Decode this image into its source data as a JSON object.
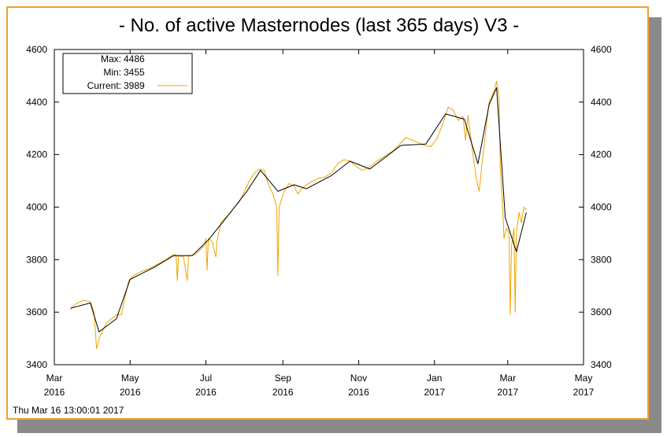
{
  "chart_data": {
    "type": "line",
    "title": "- No. of active Masternodes (last 365 days) V3 -",
    "ylim": [
      3400,
      4600
    ],
    "y_ticks": [
      3400,
      3600,
      3800,
      4000,
      4200,
      4400,
      4600
    ],
    "x_ticks": [
      {
        "month": "Mar",
        "year": "2016",
        "date": "2016-03-01"
      },
      {
        "month": "May",
        "year": "2016",
        "date": "2016-05-01"
      },
      {
        "month": "Jul",
        "year": "2016",
        "date": "2016-07-01"
      },
      {
        "month": "Sep",
        "year": "2016",
        "date": "2016-09-01"
      },
      {
        "month": "Nov",
        "year": "2016",
        "date": "2016-11-01"
      },
      {
        "month": "Jan",
        "year": "2017",
        "date": "2017-01-01"
      },
      {
        "month": "Mar",
        "year": "2017",
        "date": "2017-03-01"
      },
      {
        "month": "May",
        "year": "2017",
        "date": "2017-05-01"
      }
    ],
    "xlim": [
      "2016-03-01",
      "2017-05-01"
    ],
    "grid": false,
    "legend": {
      "placement": "top-left",
      "max_label": "Max:",
      "max_value": "4486",
      "min_label": "Min:",
      "min_value": "3455",
      "current_label": "Current:",
      "current_value": "3989"
    },
    "colors": {
      "raw": "#f0a500",
      "average": "#000000",
      "frame": "#f0a030"
    },
    "series": [
      {
        "style": "raw",
        "points": [
          [
            "2016-03-14",
            3610
          ],
          [
            "2016-03-18",
            3630
          ],
          [
            "2016-03-24",
            3645
          ],
          [
            "2016-03-30",
            3640
          ],
          [
            "2016-04-02",
            3600
          ],
          [
            "2016-04-04",
            3460
          ],
          [
            "2016-04-06",
            3500
          ],
          [
            "2016-04-09",
            3530
          ],
          [
            "2016-04-12",
            3560
          ],
          [
            "2016-04-16",
            3575
          ],
          [
            "2016-04-20",
            3590
          ],
          [
            "2016-04-24",
            3590
          ],
          [
            "2016-04-27",
            3660
          ],
          [
            "2016-04-30",
            3720
          ],
          [
            "2016-05-04",
            3740
          ],
          [
            "2016-05-10",
            3755
          ],
          [
            "2016-05-16",
            3765
          ],
          [
            "2016-05-22",
            3780
          ],
          [
            "2016-05-26",
            3790
          ],
          [
            "2016-05-30",
            3800
          ],
          [
            "2016-06-03",
            3815
          ],
          [
            "2016-06-07",
            3820
          ],
          [
            "2016-06-08",
            3720
          ],
          [
            "2016-06-09",
            3815
          ],
          [
            "2016-06-13",
            3810
          ],
          [
            "2016-06-16",
            3720
          ],
          [
            "2016-06-17",
            3815
          ],
          [
            "2016-06-22",
            3818
          ],
          [
            "2016-06-26",
            3835
          ],
          [
            "2016-06-29",
            3850
          ],
          [
            "2016-07-01",
            3880
          ],
          [
            "2016-07-02",
            3760
          ],
          [
            "2016-07-03",
            3880
          ],
          [
            "2016-07-06",
            3870
          ],
          [
            "2016-07-09",
            3810
          ],
          [
            "2016-07-10",
            3870
          ],
          [
            "2016-07-13",
            3940
          ],
          [
            "2016-07-17",
            3960
          ],
          [
            "2016-07-21",
            3980
          ],
          [
            "2016-07-24",
            4000
          ],
          [
            "2016-07-28",
            4020
          ],
          [
            "2016-08-01",
            4060
          ],
          [
            "2016-08-05",
            4100
          ],
          [
            "2016-08-09",
            4130
          ],
          [
            "2016-08-13",
            4145
          ],
          [
            "2016-08-17",
            4140
          ],
          [
            "2016-08-20",
            4090
          ],
          [
            "2016-08-24",
            4050
          ],
          [
            "2016-08-27",
            4000
          ],
          [
            "2016-08-28",
            3740
          ],
          [
            "2016-08-29",
            4000
          ],
          [
            "2016-09-02",
            4060
          ],
          [
            "2016-09-06",
            4090
          ],
          [
            "2016-09-10",
            4080
          ],
          [
            "2016-09-13",
            4050
          ],
          [
            "2016-09-16",
            4070
          ],
          [
            "2016-09-20",
            4085
          ],
          [
            "2016-09-25",
            4100
          ],
          [
            "2016-09-30",
            4110
          ],
          [
            "2016-10-05",
            4115
          ],
          [
            "2016-10-10",
            4130
          ],
          [
            "2016-10-15",
            4165
          ],
          [
            "2016-10-20",
            4180
          ],
          [
            "2016-10-25",
            4175
          ],
          [
            "2016-10-30",
            4155
          ],
          [
            "2016-11-04",
            4140
          ],
          [
            "2016-11-09",
            4150
          ],
          [
            "2016-11-14",
            4170
          ],
          [
            "2016-11-19",
            4185
          ],
          [
            "2016-11-24",
            4200
          ],
          [
            "2016-11-29",
            4215
          ],
          [
            "2016-12-04",
            4240
          ],
          [
            "2016-12-09",
            4265
          ],
          [
            "2016-12-14",
            4255
          ],
          [
            "2016-12-19",
            4245
          ],
          [
            "2016-12-24",
            4235
          ],
          [
            "2016-12-29",
            4230
          ],
          [
            "2017-01-03",
            4260
          ],
          [
            "2017-01-08",
            4320
          ],
          [
            "2017-01-12",
            4380
          ],
          [
            "2017-01-16",
            4370
          ],
          [
            "2017-01-20",
            4330
          ],
          [
            "2017-01-24",
            4345
          ],
          [
            "2017-01-26",
            4255
          ],
          [
            "2017-01-28",
            4350
          ],
          [
            "2017-02-01",
            4200
          ],
          [
            "2017-02-04",
            4100
          ],
          [
            "2017-02-06",
            4060
          ],
          [
            "2017-02-08",
            4150
          ],
          [
            "2017-02-11",
            4280
          ],
          [
            "2017-02-14",
            4400
          ],
          [
            "2017-02-18",
            4440
          ],
          [
            "2017-02-20",
            4480
          ],
          [
            "2017-02-22",
            4420
          ],
          [
            "2017-02-23",
            4150
          ],
          [
            "2017-02-25",
            3990
          ],
          [
            "2017-02-26",
            3880
          ],
          [
            "2017-02-28",
            3920
          ],
          [
            "2017-03-02",
            3900
          ],
          [
            "2017-03-03",
            3590
          ],
          [
            "2017-03-04",
            3850
          ],
          [
            "2017-03-06",
            3920
          ],
          [
            "2017-03-07",
            3600
          ],
          [
            "2017-03-08",
            3900
          ],
          [
            "2017-03-10",
            3980
          ],
          [
            "2017-03-12",
            3940
          ],
          [
            "2017-03-14",
            4000
          ],
          [
            "2017-03-16",
            3989
          ]
        ]
      },
      {
        "style": "average",
        "points": [
          [
            "2016-03-14",
            3615
          ],
          [
            "2016-03-30",
            3635
          ],
          [
            "2016-04-06",
            3525
          ],
          [
            "2016-04-20",
            3575
          ],
          [
            "2016-05-01",
            3725
          ],
          [
            "2016-05-20",
            3770
          ],
          [
            "2016-06-05",
            3815
          ],
          [
            "2016-06-20",
            3815
          ],
          [
            "2016-07-03",
            3875
          ],
          [
            "2016-07-20",
            3975
          ],
          [
            "2016-08-03",
            4060
          ],
          [
            "2016-08-14",
            4140
          ],
          [
            "2016-08-28",
            4060
          ],
          [
            "2016-09-10",
            4085
          ],
          [
            "2016-09-20",
            4070
          ],
          [
            "2016-10-10",
            4120
          ],
          [
            "2016-10-25",
            4175
          ],
          [
            "2016-11-10",
            4145
          ],
          [
            "2016-12-05",
            4235
          ],
          [
            "2016-12-25",
            4240
          ],
          [
            "2017-01-10",
            4355
          ],
          [
            "2017-01-25",
            4335
          ],
          [
            "2017-02-05",
            4165
          ],
          [
            "2017-02-14",
            4390
          ],
          [
            "2017-02-20",
            4455
          ],
          [
            "2017-02-27",
            3960
          ],
          [
            "2017-03-08",
            3830
          ],
          [
            "2017-03-16",
            3980
          ]
        ]
      }
    ],
    "timestamp": "Thu Mar 16 13:00:01 2017"
  }
}
